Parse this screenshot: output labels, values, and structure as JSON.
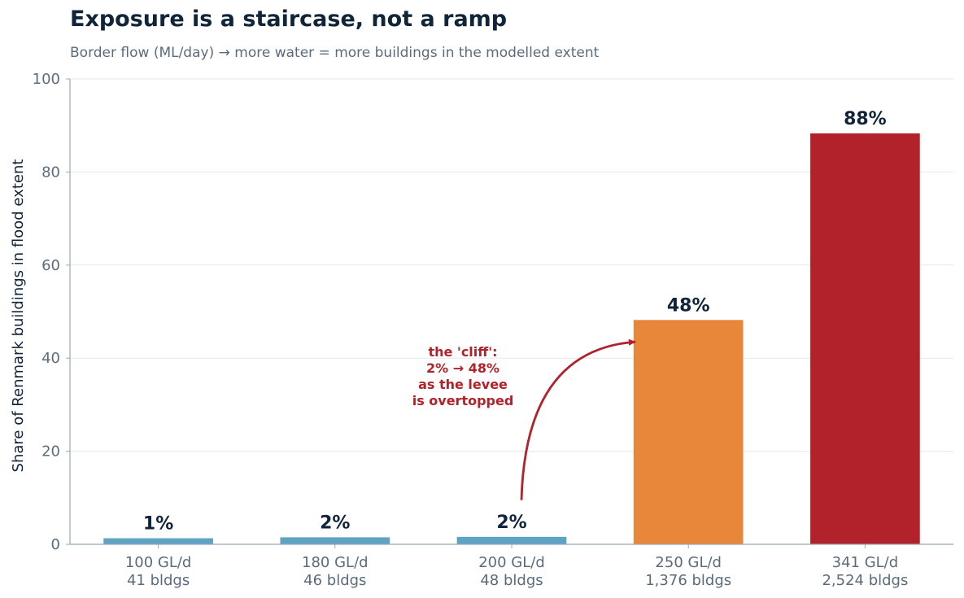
{
  "title": "Exposure is a staircase, not a ramp",
  "subtitle": "Border flow (ML/day) → more water = more buildings in the modelled extent",
  "chart_data": {
    "type": "bar",
    "categories": [
      "100 GL/d",
      "180 GL/d",
      "200 GL/d",
      "250 GL/d",
      "341 GL/d"
    ],
    "category_sublabels": [
      "41 bldgs",
      "46 bldgs",
      "48 bldgs",
      "1,376 bldgs",
      "2,524 bldgs"
    ],
    "values": [
      1.3,
      1.5,
      1.6,
      48.2,
      88.3
    ],
    "value_labels": [
      "1%",
      "2%",
      "2%",
      "48%",
      "88%"
    ],
    "colors": [
      "#5ea3c4",
      "#5ea3c4",
      "#5ea3c4",
      "#e8873a",
      "#b2222a"
    ],
    "xlabel": "",
    "ylabel": "Share of Renmark buildings in flood extent",
    "ylim": [
      0,
      100
    ],
    "yticks": [
      0,
      20,
      40,
      60,
      80,
      100
    ],
    "grid": true,
    "annotation": {
      "lines": [
        "the 'cliff':",
        "2% → 48%",
        "as the levee",
        "is overtopped"
      ],
      "color": "#b2222a",
      "arrow_from": {
        "x": "200 GL/d",
        "y": 9.5
      },
      "arrow_to": {
        "x": "250 GL/d",
        "y": 43.5
      }
    }
  }
}
